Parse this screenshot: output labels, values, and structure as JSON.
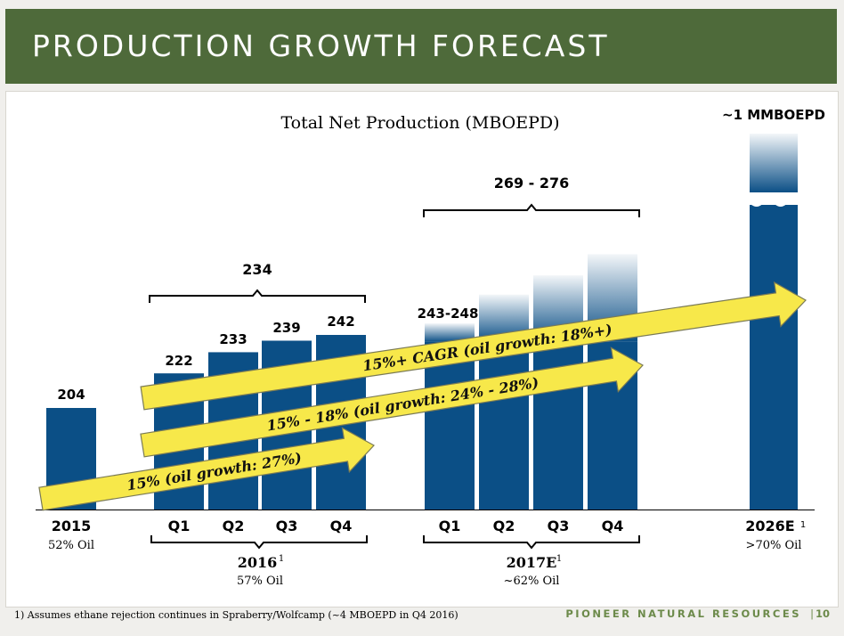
{
  "header": {
    "title": "PRODUCTION GROWTH FORECAST"
  },
  "chart_data": {
    "type": "bar",
    "title": "Total Net Production (MBOEPD)",
    "categories": [
      "2015",
      "2016 Q1",
      "2016 Q2",
      "2016 Q3",
      "2016 Q4",
      "2017E Q1",
      "2017E Q2",
      "2017E Q3",
      "2017E Q4",
      "2026E"
    ],
    "values": [
      204,
      222,
      233,
      239,
      242,
      245.5,
      255,
      265,
      276,
      1000
    ],
    "bar_labels": [
      "204",
      "222",
      "233",
      "239",
      "242",
      "243-248",
      "",
      "",
      "",
      "~1 MMBOEPD"
    ],
    "tick_labels": [
      "2015",
      "Q1",
      "Q2",
      "Q3",
      "Q4",
      "Q1",
      "Q2",
      "Q3",
      "Q4",
      "2026E"
    ],
    "year_labels": {
      "y2015": {
        "label": "2015",
        "oil": "52% Oil"
      },
      "y2016": {
        "label": "2016",
        "sup": "1",
        "oil": "57% Oil",
        "bracket_total": "234"
      },
      "y2017": {
        "label": "2017E",
        "sup": "1",
        "oil": "~62% Oil",
        "bracket_total": "269 - 276"
      },
      "y2026": {
        "label": "2026E",
        "sup": "1",
        "oil": ">70% Oil"
      }
    },
    "arrows": [
      {
        "label": "15% (oil growth: 27%)"
      },
      {
        "label": "15% - 18% (oil growth: 24% - 28%)"
      },
      {
        "label": "15%+ CAGR (oil growth: 18%+)"
      }
    ],
    "colors": {
      "bar": "#0b4f86",
      "arrow_fill": "#f7e84a",
      "arrow_stroke": "#7a7a55",
      "header": "#4e6a3a",
      "brand": "#6c8a4a"
    }
  },
  "footnote": "1)  Assumes ethane rejection continues in Spraberry/Wolfcamp (~4 MBOEPD in Q4 2016)",
  "brand": {
    "name": "PIONEER NATURAL RESOURCES",
    "separator": "|",
    "page": "10"
  }
}
